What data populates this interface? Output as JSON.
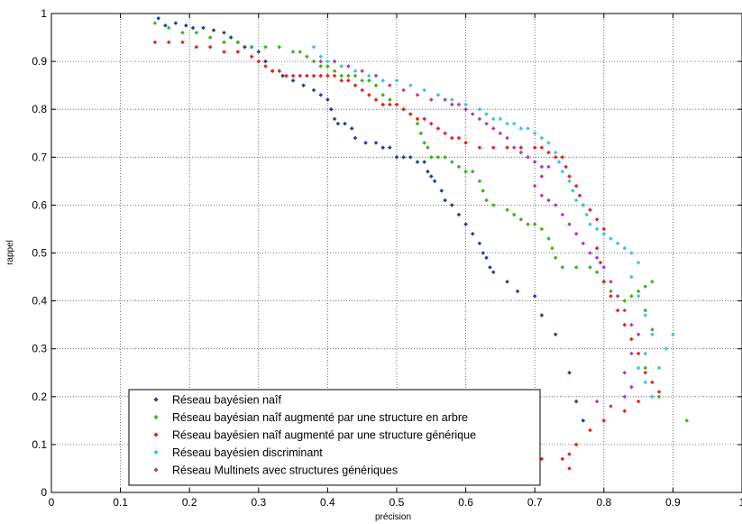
{
  "chart_data": {
    "type": "scatter",
    "title": "",
    "xlabel": "précision",
    "ylabel": "rappel",
    "xlim": [
      0,
      1
    ],
    "ylim": [
      0,
      1
    ],
    "xticks": [
      "0",
      "0.1",
      "0.2",
      "0.3",
      "0.4",
      "0.5",
      "0.6",
      "0.7",
      "0.8",
      "0.9",
      "1"
    ],
    "yticks": [
      "0",
      "0.1",
      "0.2",
      "0.3",
      "0.4",
      "0.5",
      "0.6",
      "0.7",
      "0.8",
      "0.9",
      "1"
    ],
    "grid": "dotted",
    "legend_position": "bottom-center",
    "series": [
      {
        "name": "Réseau bayésien naîf",
        "color": "#1f3f9e",
        "points": [
          [
            0.155,
            0.99
          ],
          [
            0.165,
            0.975
          ],
          [
            0.18,
            0.98
          ],
          [
            0.195,
            0.975
          ],
          [
            0.205,
            0.97
          ],
          [
            0.22,
            0.97
          ],
          [
            0.235,
            0.965
          ],
          [
            0.25,
            0.96
          ],
          [
            0.26,
            0.95
          ],
          [
            0.27,
            0.94
          ],
          [
            0.28,
            0.93
          ],
          [
            0.29,
            0.93
          ],
          [
            0.3,
            0.92
          ],
          [
            0.31,
            0.9
          ],
          [
            0.32,
            0.88
          ],
          [
            0.335,
            0.87
          ],
          [
            0.35,
            0.86
          ],
          [
            0.365,
            0.85
          ],
          [
            0.38,
            0.84
          ],
          [
            0.39,
            0.83
          ],
          [
            0.4,
            0.82
          ],
          [
            0.405,
            0.8
          ],
          [
            0.41,
            0.78
          ],
          [
            0.415,
            0.77
          ],
          [
            0.425,
            0.77
          ],
          [
            0.435,
            0.76
          ],
          [
            0.44,
            0.74
          ],
          [
            0.455,
            0.73
          ],
          [
            0.47,
            0.73
          ],
          [
            0.48,
            0.72
          ],
          [
            0.49,
            0.72
          ],
          [
            0.5,
            0.7
          ],
          [
            0.51,
            0.7
          ],
          [
            0.52,
            0.7
          ],
          [
            0.53,
            0.69
          ],
          [
            0.54,
            0.69
          ],
          [
            0.545,
            0.67
          ],
          [
            0.55,
            0.66
          ],
          [
            0.555,
            0.65
          ],
          [
            0.565,
            0.63
          ],
          [
            0.57,
            0.61
          ],
          [
            0.58,
            0.6
          ],
          [
            0.59,
            0.58
          ],
          [
            0.6,
            0.56
          ],
          [
            0.61,
            0.54
          ],
          [
            0.62,
            0.52
          ],
          [
            0.625,
            0.5
          ],
          [
            0.63,
            0.49
          ],
          [
            0.635,
            0.47
          ],
          [
            0.64,
            0.46
          ],
          [
            0.66,
            0.44
          ],
          [
            0.675,
            0.42
          ],
          [
            0.7,
            0.41
          ],
          [
            0.71,
            0.37
          ],
          [
            0.73,
            0.33
          ],
          [
            0.75,
            0.25
          ],
          [
            0.76,
            0.19
          ],
          [
            0.77,
            0.15
          ]
        ]
      },
      {
        "name": "Réseau bayésian naîf augmenté par une structure en arbre",
        "color": "#3db31c",
        "points": [
          [
            0.15,
            0.98
          ],
          [
            0.17,
            0.97
          ],
          [
            0.19,
            0.96
          ],
          [
            0.21,
            0.96
          ],
          [
            0.23,
            0.95
          ],
          [
            0.25,
            0.94
          ],
          [
            0.27,
            0.94
          ],
          [
            0.29,
            0.93
          ],
          [
            0.31,
            0.93
          ],
          [
            0.33,
            0.93
          ],
          [
            0.35,
            0.92
          ],
          [
            0.36,
            0.92
          ],
          [
            0.37,
            0.91
          ],
          [
            0.38,
            0.9
          ],
          [
            0.39,
            0.89
          ],
          [
            0.4,
            0.89
          ],
          [
            0.41,
            0.88
          ],
          [
            0.42,
            0.87
          ],
          [
            0.43,
            0.87
          ],
          [
            0.44,
            0.87
          ],
          [
            0.45,
            0.86
          ],
          [
            0.46,
            0.86
          ],
          [
            0.47,
            0.85
          ],
          [
            0.48,
            0.83
          ],
          [
            0.49,
            0.82
          ],
          [
            0.5,
            0.81
          ],
          [
            0.51,
            0.8
          ],
          [
            0.52,
            0.79
          ],
          [
            0.53,
            0.77
          ],
          [
            0.535,
            0.75
          ],
          [
            0.54,
            0.73
          ],
          [
            0.545,
            0.72
          ],
          [
            0.55,
            0.7
          ],
          [
            0.56,
            0.7
          ],
          [
            0.57,
            0.7
          ],
          [
            0.58,
            0.69
          ],
          [
            0.59,
            0.68
          ],
          [
            0.6,
            0.67
          ],
          [
            0.61,
            0.67
          ],
          [
            0.62,
            0.65
          ],
          [
            0.625,
            0.63
          ],
          [
            0.63,
            0.61
          ],
          [
            0.64,
            0.6
          ],
          [
            0.66,
            0.59
          ],
          [
            0.67,
            0.58
          ],
          [
            0.68,
            0.57
          ],
          [
            0.69,
            0.56
          ],
          [
            0.7,
            0.56
          ],
          [
            0.71,
            0.55
          ],
          [
            0.72,
            0.53
          ],
          [
            0.725,
            0.51
          ],
          [
            0.73,
            0.49
          ],
          [
            0.74,
            0.47
          ],
          [
            0.76,
            0.47
          ],
          [
            0.78,
            0.47
          ],
          [
            0.79,
            0.46
          ],
          [
            0.8,
            0.44
          ],
          [
            0.81,
            0.42
          ],
          [
            0.82,
            0.41
          ],
          [
            0.83,
            0.4
          ],
          [
            0.84,
            0.41
          ],
          [
            0.85,
            0.42
          ],
          [
            0.86,
            0.43
          ],
          [
            0.87,
            0.44
          ],
          [
            0.86,
            0.38
          ],
          [
            0.87,
            0.34
          ],
          [
            0.86,
            0.26
          ],
          [
            0.88,
            0.2
          ],
          [
            0.92,
            0.15
          ]
        ]
      },
      {
        "name": "Réseau bayésien naîf augmenté par une structure générique",
        "color": "#e8201e",
        "points": [
          [
            0.15,
            0.94
          ],
          [
            0.17,
            0.94
          ],
          [
            0.19,
            0.94
          ],
          [
            0.21,
            0.93
          ],
          [
            0.23,
            0.93
          ],
          [
            0.25,
            0.92
          ],
          [
            0.27,
            0.92
          ],
          [
            0.29,
            0.91
          ],
          [
            0.3,
            0.9
          ],
          [
            0.31,
            0.89
          ],
          [
            0.32,
            0.88
          ],
          [
            0.33,
            0.88
          ],
          [
            0.34,
            0.87
          ],
          [
            0.35,
            0.87
          ],
          [
            0.36,
            0.87
          ],
          [
            0.37,
            0.87
          ],
          [
            0.38,
            0.87
          ],
          [
            0.39,
            0.87
          ],
          [
            0.4,
            0.87
          ],
          [
            0.41,
            0.87
          ],
          [
            0.42,
            0.86
          ],
          [
            0.43,
            0.86
          ],
          [
            0.44,
            0.85
          ],
          [
            0.45,
            0.84
          ],
          [
            0.46,
            0.83
          ],
          [
            0.47,
            0.82
          ],
          [
            0.48,
            0.81
          ],
          [
            0.49,
            0.81
          ],
          [
            0.5,
            0.81
          ],
          [
            0.51,
            0.8
          ],
          [
            0.52,
            0.79
          ],
          [
            0.53,
            0.78
          ],
          [
            0.54,
            0.78
          ],
          [
            0.55,
            0.77
          ],
          [
            0.56,
            0.76
          ],
          [
            0.57,
            0.75
          ],
          [
            0.58,
            0.74
          ],
          [
            0.59,
            0.74
          ],
          [
            0.6,
            0.73
          ],
          [
            0.62,
            0.72
          ],
          [
            0.64,
            0.72
          ],
          [
            0.66,
            0.72
          ],
          [
            0.68,
            0.72
          ],
          [
            0.7,
            0.72
          ],
          [
            0.71,
            0.72
          ],
          [
            0.72,
            0.71
          ],
          [
            0.73,
            0.7
          ],
          [
            0.74,
            0.7
          ],
          [
            0.745,
            0.68
          ],
          [
            0.75,
            0.66
          ],
          [
            0.76,
            0.64
          ],
          [
            0.765,
            0.62
          ],
          [
            0.77,
            0.6
          ],
          [
            0.78,
            0.59
          ],
          [
            0.79,
            0.57
          ],
          [
            0.8,
            0.55
          ],
          [
            0.79,
            0.51
          ],
          [
            0.795,
            0.48
          ],
          [
            0.8,
            0.44
          ],
          [
            0.81,
            0.41
          ],
          [
            0.82,
            0.38
          ],
          [
            0.83,
            0.35
          ],
          [
            0.84,
            0.32
          ],
          [
            0.85,
            0.29
          ],
          [
            0.86,
            0.25
          ],
          [
            0.87,
            0.23
          ],
          [
            0.88,
            0.21
          ],
          [
            0.85,
            0.19
          ],
          [
            0.83,
            0.17
          ],
          [
            0.8,
            0.15
          ],
          [
            0.78,
            0.13
          ],
          [
            0.76,
            0.1
          ],
          [
            0.75,
            0.08
          ],
          [
            0.74,
            0.07
          ],
          [
            0.75,
            0.05
          ],
          [
            0.71,
            0.07
          ]
        ]
      },
      {
        "name": "Réseau bayésien discriminant",
        "color": "#3bc4d9",
        "points": [
          [
            0.38,
            0.93
          ],
          [
            0.39,
            0.91
          ],
          [
            0.4,
            0.9
          ],
          [
            0.42,
            0.89
          ],
          [
            0.44,
            0.88
          ],
          [
            0.46,
            0.87
          ],
          [
            0.48,
            0.86
          ],
          [
            0.5,
            0.86
          ],
          [
            0.52,
            0.85
          ],
          [
            0.54,
            0.84
          ],
          [
            0.56,
            0.83
          ],
          [
            0.58,
            0.82
          ],
          [
            0.6,
            0.81
          ],
          [
            0.62,
            0.8
          ],
          [
            0.63,
            0.79
          ],
          [
            0.64,
            0.78
          ],
          [
            0.65,
            0.78
          ],
          [
            0.66,
            0.77
          ],
          [
            0.67,
            0.77
          ],
          [
            0.68,
            0.76
          ],
          [
            0.69,
            0.76
          ],
          [
            0.7,
            0.75
          ],
          [
            0.71,
            0.74
          ],
          [
            0.72,
            0.73
          ],
          [
            0.73,
            0.71
          ],
          [
            0.735,
            0.69
          ],
          [
            0.74,
            0.67
          ],
          [
            0.75,
            0.65
          ],
          [
            0.755,
            0.63
          ],
          [
            0.76,
            0.61
          ],
          [
            0.77,
            0.6
          ],
          [
            0.775,
            0.58
          ],
          [
            0.78,
            0.56
          ],
          [
            0.79,
            0.55
          ],
          [
            0.8,
            0.54
          ],
          [
            0.81,
            0.53
          ],
          [
            0.82,
            0.52
          ],
          [
            0.83,
            0.51
          ],
          [
            0.84,
            0.5
          ],
          [
            0.85,
            0.48
          ],
          [
            0.84,
            0.45
          ],
          [
            0.85,
            0.41
          ],
          [
            0.86,
            0.37
          ],
          [
            0.87,
            0.33
          ],
          [
            0.86,
            0.29
          ],
          [
            0.85,
            0.26
          ],
          [
            0.86,
            0.23
          ],
          [
            0.87,
            0.2
          ],
          [
            0.88,
            0.26
          ],
          [
            0.89,
            0.3
          ],
          [
            0.9,
            0.33
          ]
        ]
      },
      {
        "name": "Réseau Multinets avec structures génériques",
        "color": "#b03ab5",
        "points": [
          [
            0.39,
            0.9
          ],
          [
            0.41,
            0.9
          ],
          [
            0.43,
            0.89
          ],
          [
            0.45,
            0.88
          ],
          [
            0.47,
            0.87
          ],
          [
            0.49,
            0.85
          ],
          [
            0.51,
            0.84
          ],
          [
            0.53,
            0.83
          ],
          [
            0.55,
            0.82
          ],
          [
            0.57,
            0.82
          ],
          [
            0.58,
            0.81
          ],
          [
            0.59,
            0.81
          ],
          [
            0.6,
            0.8
          ],
          [
            0.61,
            0.79
          ],
          [
            0.62,
            0.78
          ],
          [
            0.63,
            0.77
          ],
          [
            0.64,
            0.76
          ],
          [
            0.65,
            0.75
          ],
          [
            0.66,
            0.74
          ],
          [
            0.67,
            0.72
          ],
          [
            0.68,
            0.71
          ],
          [
            0.69,
            0.7
          ],
          [
            0.7,
            0.69
          ],
          [
            0.71,
            0.68
          ],
          [
            0.72,
            0.68
          ],
          [
            0.71,
            0.66
          ],
          [
            0.7,
            0.64
          ],
          [
            0.71,
            0.62
          ],
          [
            0.72,
            0.61
          ],
          [
            0.73,
            0.6
          ],
          [
            0.74,
            0.58
          ],
          [
            0.75,
            0.56
          ],
          [
            0.76,
            0.54
          ],
          [
            0.77,
            0.52
          ],
          [
            0.78,
            0.5
          ],
          [
            0.79,
            0.49
          ],
          [
            0.8,
            0.47
          ],
          [
            0.81,
            0.44
          ],
          [
            0.82,
            0.41
          ],
          [
            0.83,
            0.38
          ],
          [
            0.84,
            0.35
          ],
          [
            0.85,
            0.33
          ],
          [
            0.84,
            0.29
          ],
          [
            0.83,
            0.25
          ],
          [
            0.84,
            0.22
          ],
          [
            0.83,
            0.2
          ],
          [
            0.81,
            0.18
          ],
          [
            0.79,
            0.19
          ]
        ]
      }
    ]
  }
}
